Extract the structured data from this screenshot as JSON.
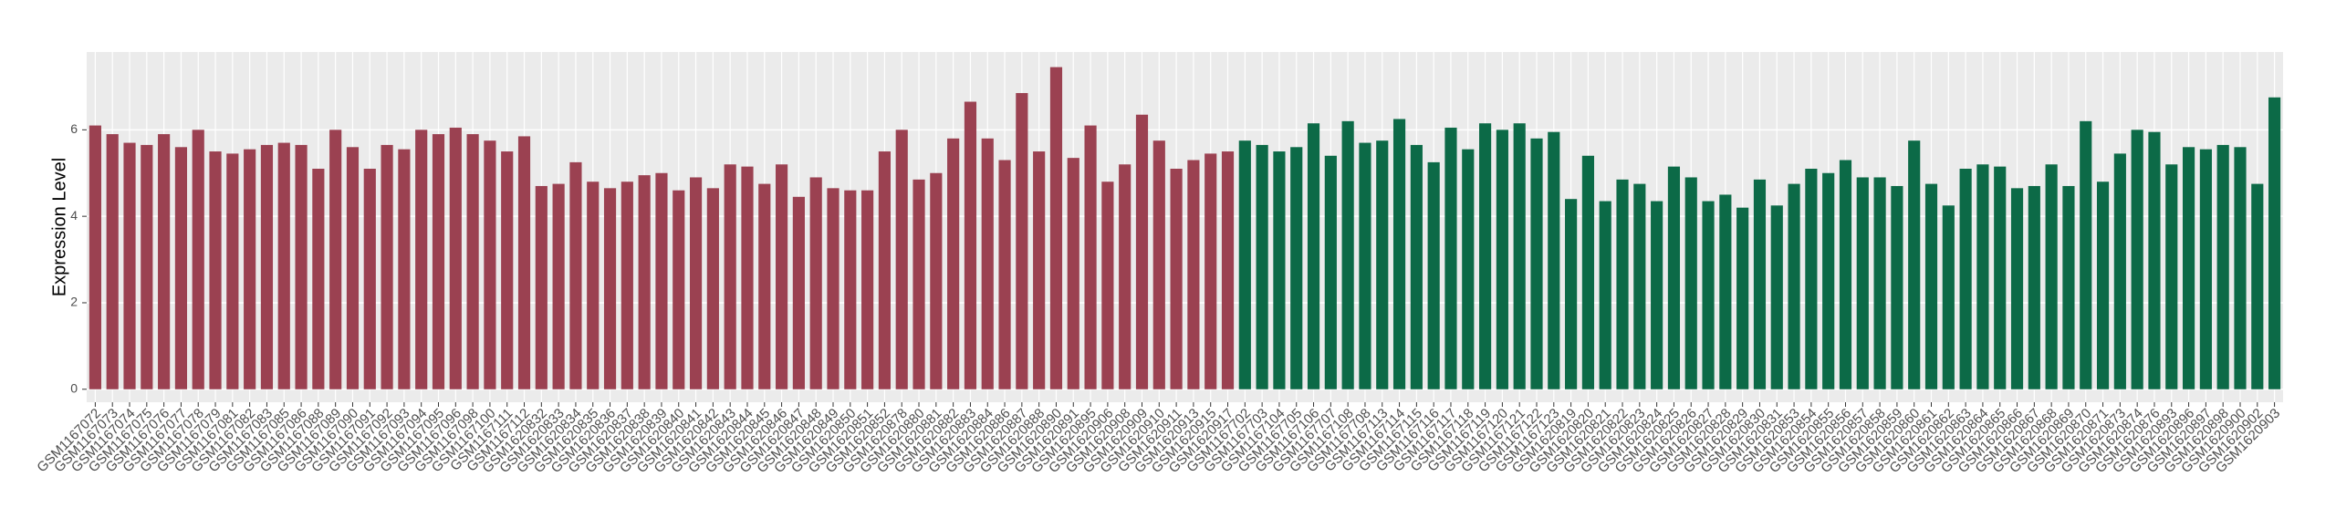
{
  "chart_data": {
    "type": "bar",
    "y_label": "Expression Level",
    "categories": [
      "GSM1167072",
      "GSM1167073",
      "GSM1167074",
      "GSM1167075",
      "GSM1167076",
      "GSM1167077",
      "GSM1167078",
      "GSM1167079",
      "GSM1167081",
      "GSM1167082",
      "GSM1167083",
      "GSM1167085",
      "GSM1167086",
      "GSM1167088",
      "GSM1167089",
      "GSM1167090",
      "GSM1167091",
      "GSM1167092",
      "GSM1167093",
      "GSM1167094",
      "GSM1167095",
      "GSM1167096",
      "GSM1167098",
      "GSM1167100",
      "GSM1167111",
      "GSM1167112",
      "GSM1620832",
      "GSM1620833",
      "GSM1620834",
      "GSM1620835",
      "GSM1620836",
      "GSM1620837",
      "GSM1620838",
      "GSM1620839",
      "GSM1620840",
      "GSM1620841",
      "GSM1620842",
      "GSM1620843",
      "GSM1620844",
      "GSM1620845",
      "GSM1620846",
      "GSM1620847",
      "GSM1620848",
      "GSM1620849",
      "GSM1620850",
      "GSM1620851",
      "GSM1620852",
      "GSM1620878",
      "GSM1620880",
      "GSM1620881",
      "GSM1620882",
      "GSM1620883",
      "GSM1620884",
      "GSM1620886",
      "GSM1620887",
      "GSM1620888",
      "GSM1620890",
      "GSM1620891",
      "GSM1620895",
      "GSM1620906",
      "GSM1620908",
      "GSM1620909",
      "GSM1620910",
      "GSM1620911",
      "GSM1620913",
      "GSM1620915",
      "GSM1620917",
      "GSM1167702",
      "GSM1167703",
      "GSM1167104",
      "GSM1167705",
      "GSM1167106",
      "GSM1167707",
      "GSM1167108",
      "GSM1167708",
      "GSM1167113",
      "GSM1167114",
      "GSM1167115",
      "GSM1167116",
      "GSM1167117",
      "GSM1167118",
      "GSM1167119",
      "GSM1167120",
      "GSM1167121",
      "GSM1167122",
      "GSM1167123",
      "GSM1620819",
      "GSM1620820",
      "GSM1620821",
      "GSM1620822",
      "GSM1620823",
      "GSM1620824",
      "GSM1620825",
      "GSM1620826",
      "GSM1620827",
      "GSM1620828",
      "GSM1620829",
      "GSM1620830",
      "GSM1620831",
      "GSM1620853",
      "GSM1620854",
      "GSM1620855",
      "GSM1620856",
      "GSM1620857",
      "GSM1620858",
      "GSM1620859",
      "GSM1620860",
      "GSM1620861",
      "GSM1620862",
      "GSM1620863",
      "GSM1620864",
      "GSM1620865",
      "GSM1620866",
      "GSM1620867",
      "GSM1620868",
      "GSM1620869",
      "GSM1620870",
      "GSM1620871",
      "GSM1620873",
      "GSM1620874",
      "GSM1620876",
      "GSM1620893",
      "GSM1620896",
      "GSM1620897",
      "GSM1620898",
      "GSM1620900",
      "GSM1620902",
      "GSM1620903"
    ],
    "series": [
      {
        "color": "#9b4151",
        "values": [
          6.1,
          5.9,
          5.7,
          5.65,
          5.9,
          5.6,
          6.0,
          5.5,
          5.45,
          5.55,
          5.65,
          5.7,
          5.65,
          5.1,
          6.0,
          5.6,
          5.1,
          5.65,
          5.55,
          6.0,
          5.9,
          6.05,
          5.9,
          5.75,
          5.5,
          5.85,
          4.7,
          4.75,
          5.25,
          4.8,
          4.65,
          4.8,
          4.95,
          5.0,
          4.6,
          4.9,
          4.65,
          5.2,
          5.15,
          4.75,
          5.2,
          4.45,
          4.9,
          4.65,
          4.6,
          4.6,
          5.5,
          6.0,
          4.85,
          5.0,
          5.8,
          6.65,
          5.8,
          5.3,
          6.85,
          5.5,
          7.45,
          5.35,
          6.1,
          4.8,
          5.2,
          6.35,
          5.75,
          5.1,
          5.3,
          5.45,
          5.5,
          null,
          null,
          null,
          null,
          null,
          null,
          null,
          null,
          null,
          null,
          null,
          null,
          null,
          null,
          null,
          null,
          null,
          null,
          null,
          null,
          null,
          null,
          null,
          null,
          null,
          null,
          null,
          null,
          null,
          null,
          null,
          null,
          null,
          null,
          null,
          null,
          null,
          null,
          null,
          null,
          null,
          null,
          null,
          null,
          null,
          null,
          null,
          null,
          null,
          null,
          null,
          null,
          null,
          null,
          null,
          null,
          null,
          null,
          null,
          null,
          null
        ]
      },
      {
        "color": "#0c6a47",
        "values": [
          null,
          null,
          null,
          null,
          null,
          null,
          null,
          null,
          null,
          null,
          null,
          null,
          null,
          null,
          null,
          null,
          null,
          null,
          null,
          null,
          null,
          null,
          null,
          null,
          null,
          null,
          null,
          null,
          null,
          null,
          null,
          null,
          null,
          null,
          null,
          null,
          null,
          null,
          null,
          null,
          null,
          null,
          null,
          null,
          null,
          null,
          null,
          null,
          null,
          null,
          null,
          null,
          null,
          null,
          null,
          null,
          null,
          null,
          null,
          null,
          null,
          null,
          null,
          null,
          null,
          null,
          null,
          5.75,
          5.65,
          5.5,
          5.6,
          6.15,
          5.4,
          6.2,
          5.7,
          5.75,
          6.25,
          5.65,
          5.25,
          6.05,
          5.55,
          6.15,
          6.0,
          6.15,
          5.8,
          5.95,
          4.4,
          5.4,
          4.35,
          4.85,
          4.75,
          4.35,
          5.15,
          4.9,
          4.35,
          4.5,
          4.2,
          4.85,
          4.25,
          4.75,
          5.1,
          5.0,
          5.3,
          4.9,
          4.9,
          4.7,
          5.75,
          4.75,
          4.25,
          5.1,
          5.2,
          5.15,
          4.65,
          4.7,
          5.2,
          4.7,
          6.2,
          4.8,
          5.45,
          6.0,
          5.95,
          5.2,
          5.6,
          5.55,
          5.65,
          5.6,
          4.75,
          6.75
        ]
      }
    ],
    "ylim": [
      -0.3,
      7.8
    ],
    "yticks": [
      0,
      2,
      4,
      6
    ],
    "grid": true
  }
}
